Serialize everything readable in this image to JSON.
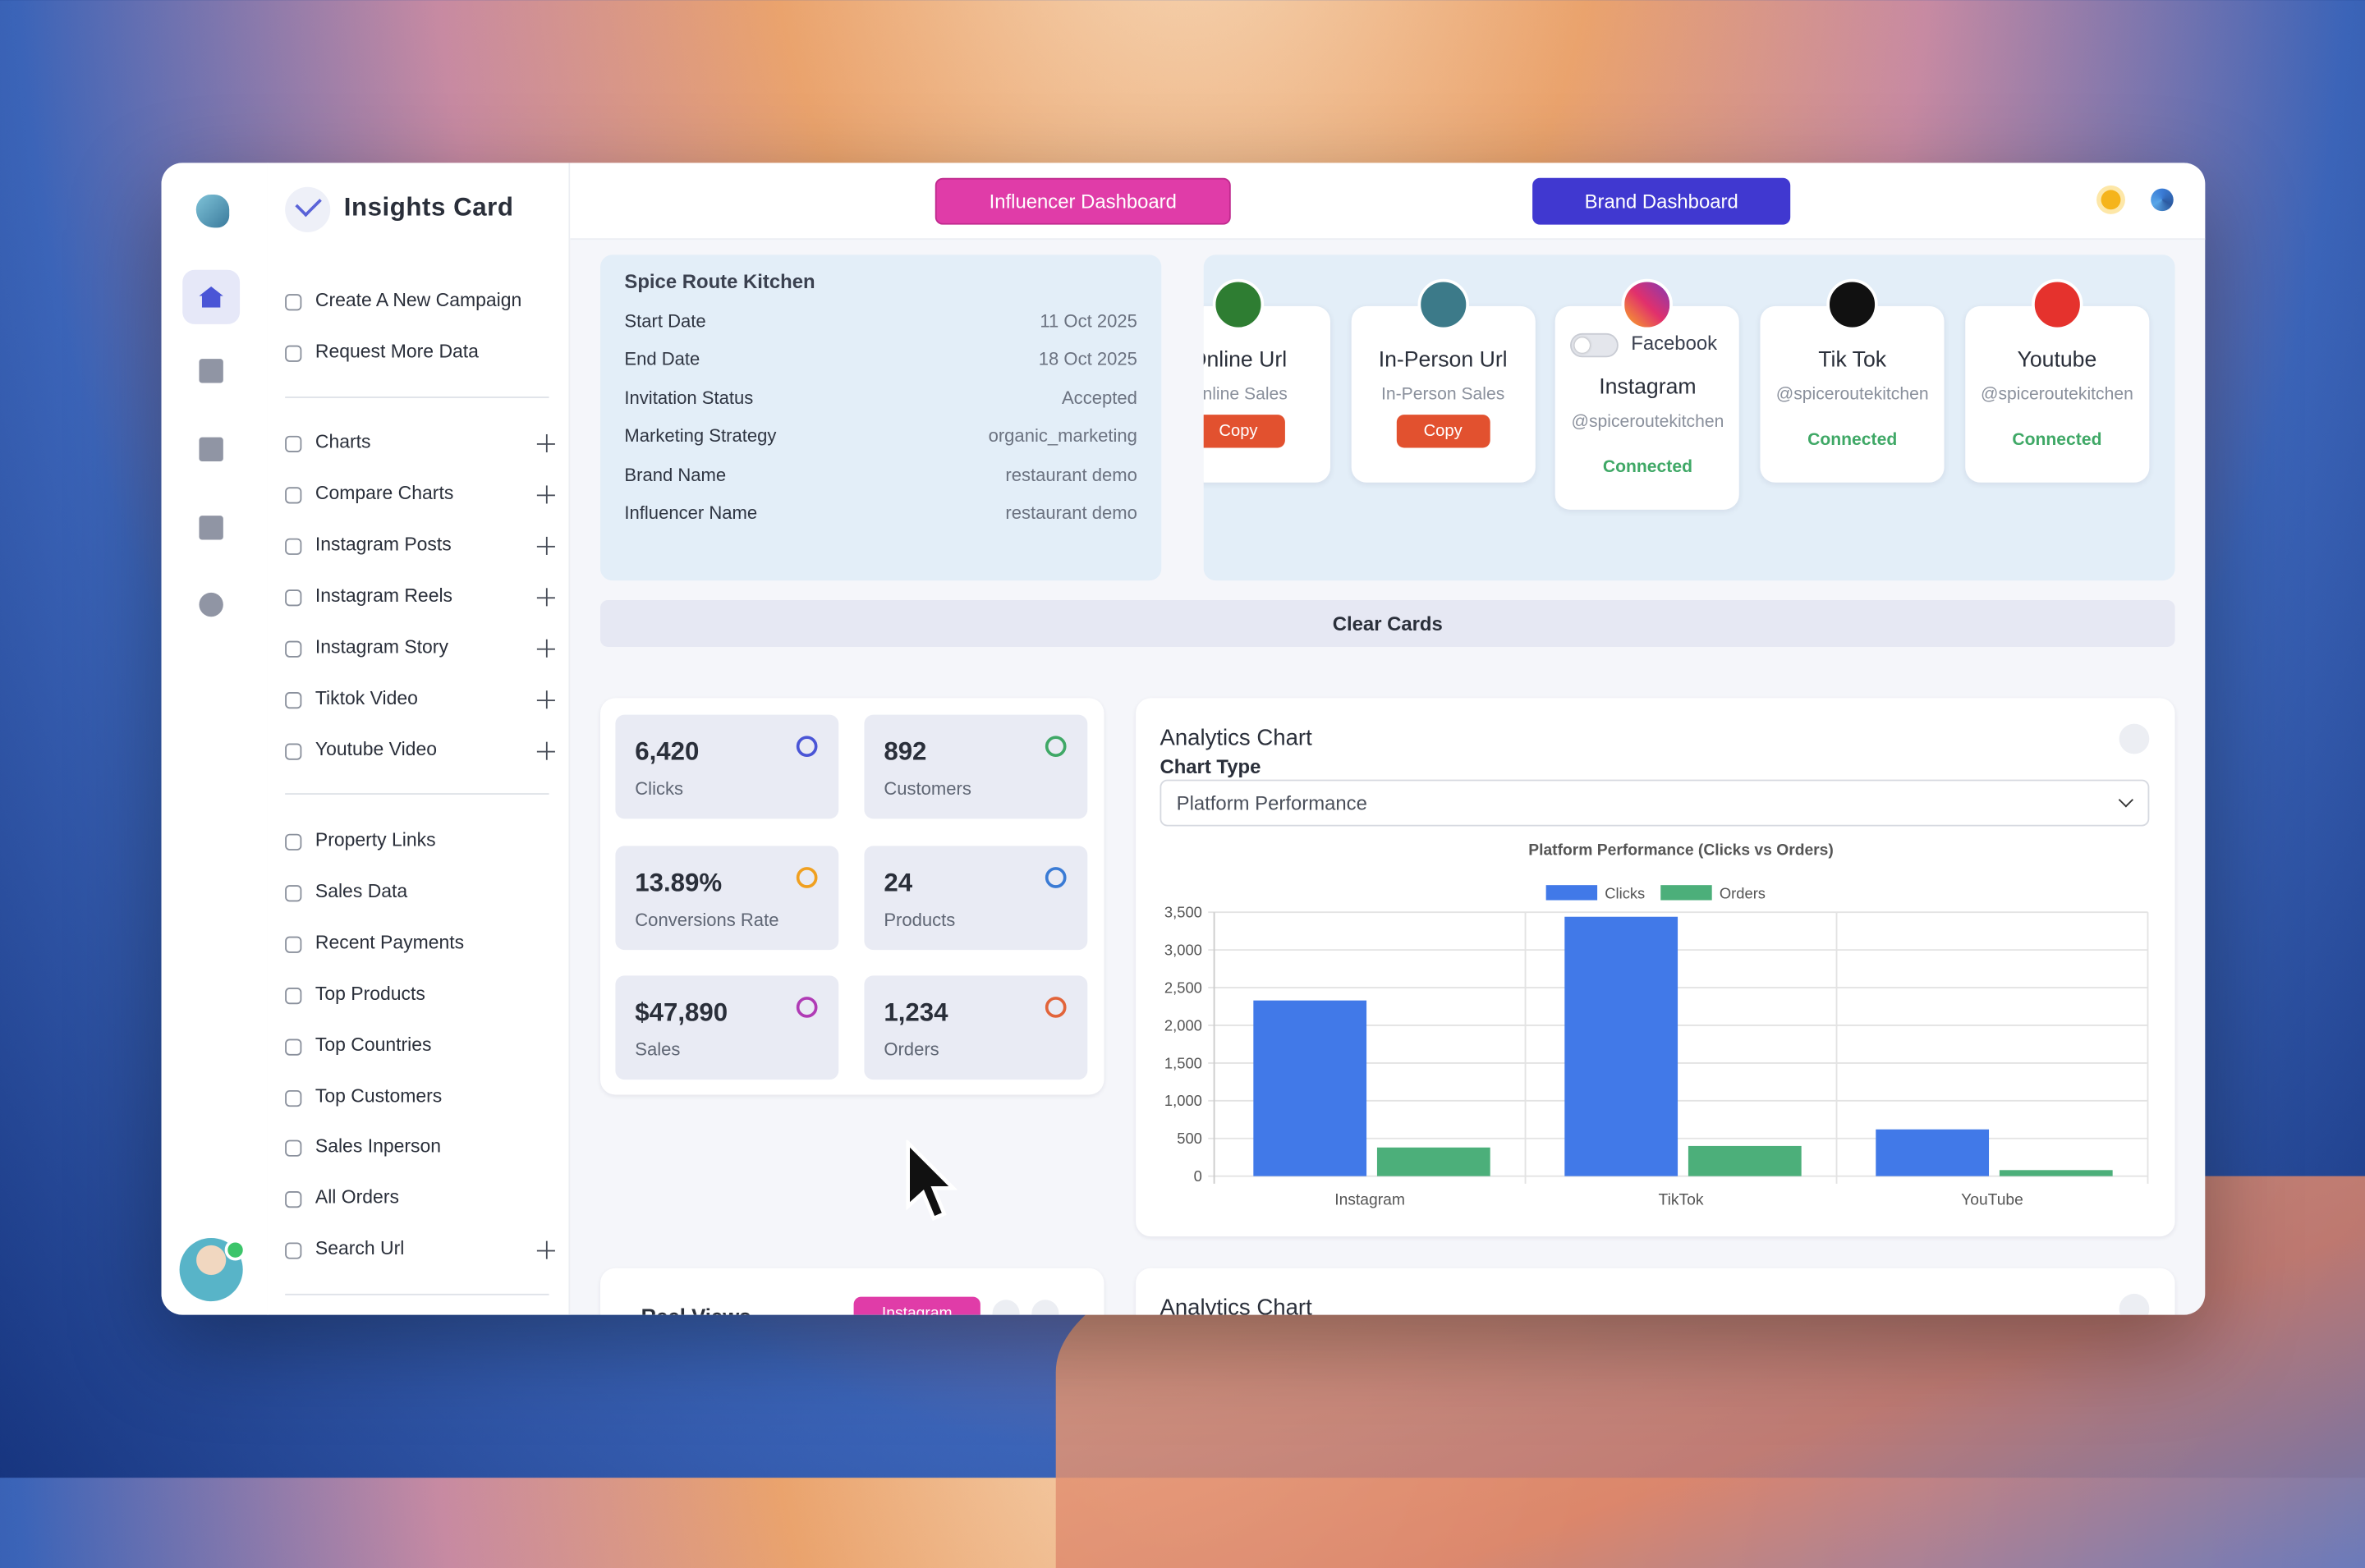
{
  "app": {
    "title": "Insights Card"
  },
  "header": {
    "buttons": [
      "Influencer Dashboard",
      "Brand Dashboard"
    ]
  },
  "nav": {
    "primary": [
      "Create A New Campaign",
      "Request More Data"
    ],
    "charts": [
      "Charts",
      "Compare Charts",
      "Instagram Posts",
      "Instagram Reels",
      "Instagram Story",
      "Tiktok Video",
      "Youtube Video"
    ],
    "reports": [
      "Property Links",
      "Sales Data",
      "Recent Payments",
      "Top Products",
      "Top Countries",
      "Top Customers",
      "Sales Inperson",
      "All Orders",
      "Search Url"
    ]
  },
  "campaign": {
    "name": "Spice Route Kitchen",
    "fields": [
      [
        "Start Date",
        "11 Oct 2025"
      ],
      [
        "End Date",
        "18 Oct 2025"
      ],
      [
        "Invitation Status",
        "Accepted"
      ],
      [
        "Marketing Strategy",
        "organic_marketing"
      ],
      [
        "Brand Name",
        "restaurant demo"
      ],
      [
        "Influencer Name",
        "restaurant demo"
      ]
    ]
  },
  "platforms": [
    {
      "name": "Online Url",
      "sub": "Online Sales",
      "action": "Copy"
    },
    {
      "name": "In-Person Url",
      "sub": "In-Person Sales",
      "action": "Copy"
    },
    {
      "name": "Instagram",
      "toggle": "Facebook",
      "sub": "@spiceroutekitchen",
      "status": "Connected"
    },
    {
      "name": "Tik Tok",
      "sub": "@spiceroutekitchen",
      "status": "Connected"
    },
    {
      "name": "Youtube",
      "sub": "@spiceroutekitchen",
      "status": "Connected"
    }
  ],
  "clear_button": "Clear Cards",
  "stats": [
    {
      "value": "6,420",
      "label": "Clicks"
    },
    {
      "value": "892",
      "label": "Customers"
    },
    {
      "value": "13.89%",
      "label": "Conversions Rate"
    },
    {
      "value": "24",
      "label": "Products"
    },
    {
      "value": "$47,890",
      "label": "Sales"
    },
    {
      "value": "1,234",
      "label": "Orders"
    }
  ],
  "chart_panel": {
    "title": "Analytics Chart",
    "select_label": "Chart Type",
    "select_value": "Platform Performance"
  },
  "chart_data": {
    "type": "bar",
    "title": "Platform Performance (Clicks vs Orders)",
    "categories": [
      "Instagram",
      "TikTok",
      "YouTube"
    ],
    "series": [
      {
        "name": "Clicks",
        "color": "#4179e8",
        "values": [
          2330,
          3440,
          620
        ]
      },
      {
        "name": "Orders",
        "color": "#4caf7a",
        "values": [
          380,
          400,
          80
        ]
      }
    ],
    "ylim": [
      0,
      3500
    ],
    "yticks": [
      0,
      500,
      {
        "value": 1000,
        "label": "1,000"
      },
      {
        "value": 1500,
        "label": "1,500"
      },
      {
        "value": 2000,
        "label": "2,000"
      },
      {
        "value": 2500,
        "label": "2,500"
      },
      {
        "value": 3000,
        "label": "3,000"
      },
      {
        "value": 3500,
        "label": "3,500"
      }
    ],
    "grid": true,
    "legend": "top"
  },
  "lower": {
    "left_title": "Reel Views",
    "left_badge": "Instagram",
    "right_title": "Analytics Chart"
  }
}
